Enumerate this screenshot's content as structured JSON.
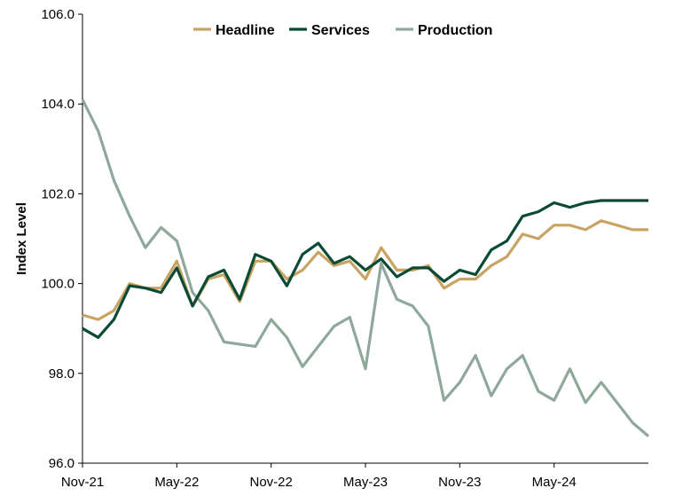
{
  "chart_data": {
    "type": "line",
    "title": "",
    "xlabel": "",
    "ylabel": "Index Level",
    "ylim": [
      96.0,
      106.0
    ],
    "yticks": [
      "96.0",
      "98.0",
      "100.0",
      "102.0",
      "104.0",
      "106.0"
    ],
    "ytick_values": [
      96,
      98,
      100,
      102,
      104,
      106
    ],
    "xticks": [
      "Nov-21",
      "May-22",
      "Nov-22",
      "May-23",
      "Nov-23",
      "May-24"
    ],
    "x": [
      "Nov-21",
      "Dec-21",
      "Jan-22",
      "Feb-22",
      "Mar-22",
      "Apr-22",
      "May-22",
      "Jun-22",
      "Jul-22",
      "Aug-22",
      "Sep-22",
      "Oct-22",
      "Nov-22",
      "Dec-22",
      "Jan-23",
      "Feb-23",
      "Mar-23",
      "Apr-23",
      "May-23",
      "Jun-23",
      "Jul-23",
      "Aug-23",
      "Sep-23",
      "Oct-23",
      "Nov-23",
      "Dec-23",
      "Jan-24",
      "Feb-24",
      "Mar-24",
      "Apr-24",
      "May-24",
      "Jun-24",
      "Jul-24",
      "Aug-24",
      "Sep-24",
      "Oct-24",
      "Nov-24"
    ],
    "grid": false,
    "legend_position": "top",
    "series": [
      {
        "name": "Headline",
        "color": "#C8A464",
        "values": [
          99.3,
          99.2,
          99.4,
          100.0,
          99.9,
          99.9,
          100.5,
          99.5,
          100.1,
          100.2,
          99.6,
          100.5,
          100.5,
          100.1,
          100.3,
          100.7,
          100.4,
          100.5,
          100.1,
          100.8,
          100.3,
          100.3,
          100.4,
          99.9,
          100.1,
          100.1,
          100.4,
          100.6,
          101.1,
          101.0,
          101.3,
          101.3,
          101.2,
          101.4,
          101.3,
          101.2,
          101.2
        ]
      },
      {
        "name": "Services",
        "color": "#0B4A35",
        "values": [
          99.0,
          98.8,
          99.2,
          99.95,
          99.9,
          99.8,
          100.35,
          99.5,
          100.15,
          100.3,
          99.65,
          100.65,
          100.5,
          99.95,
          100.65,
          100.9,
          100.45,
          100.6,
          100.3,
          100.55,
          100.15,
          100.35,
          100.35,
          100.05,
          100.3,
          100.2,
          100.75,
          100.95,
          101.5,
          101.6,
          101.8,
          101.7,
          101.8,
          101.85,
          101.85,
          101.85,
          101.85
        ]
      },
      {
        "name": "Production",
        "color": "#8FA89B",
        "values": [
          104.1,
          103.4,
          102.3,
          101.5,
          100.8,
          101.25,
          100.95,
          99.8,
          99.4,
          98.7,
          98.65,
          98.6,
          99.2,
          98.8,
          98.15,
          98.6,
          99.05,
          99.25,
          98.1,
          100.45,
          99.65,
          99.5,
          99.05,
          97.4,
          97.8,
          98.4,
          97.5,
          98.1,
          98.4,
          97.6,
          97.4,
          98.1,
          97.35,
          97.8,
          97.35,
          96.9,
          96.6
        ]
      }
    ]
  }
}
